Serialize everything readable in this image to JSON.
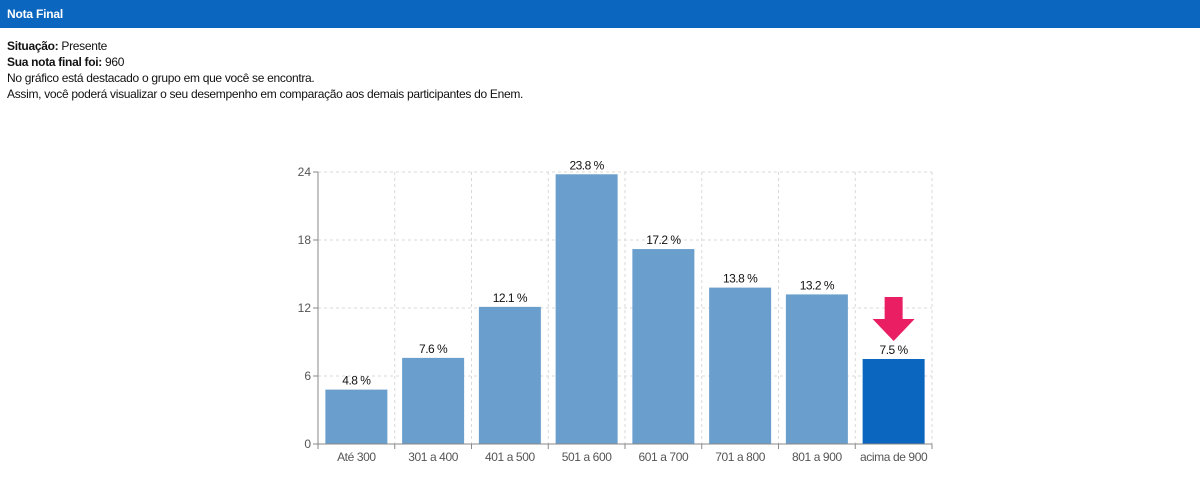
{
  "header": {
    "title": "Nota Final"
  },
  "info": {
    "situacao_label": "Situação:",
    "situacao_value": "Presente",
    "nota_label": "Sua nota final foi:",
    "nota_value": "960",
    "line1": "No gráfico está destacado o grupo em que você se encontra.",
    "line2": "Assim, você poderá visualizar o seu desempenho em comparação aos demais participantes do Enem."
  },
  "colors": {
    "header": "#0a66be",
    "bar": "#6a9fcd",
    "bar_highlight": "#0a66be",
    "arrow": "#e91e63"
  },
  "chart_data": {
    "type": "bar",
    "categories": [
      "Até 300",
      "301 a 400",
      "401 a 500",
      "501 a 600",
      "601 a 700",
      "701 a 800",
      "801 a 900",
      "acima de 900"
    ],
    "values": [
      4.8,
      7.6,
      12.1,
      23.8,
      17.2,
      13.8,
      13.2,
      7.5
    ],
    "data_labels": [
      "4.8 %",
      "7.6 %",
      "12.1 %",
      "23.8 %",
      "17.2 %",
      "13.8 %",
      "13.2 %",
      "7.5 %"
    ],
    "ylim": [
      0,
      24
    ],
    "yticks": [
      0,
      6,
      12,
      18,
      24
    ],
    "highlight_index": 7,
    "highlight_marker": "down-arrow-icon",
    "grid": true,
    "title": "",
    "xlabel": "",
    "ylabel": ""
  }
}
